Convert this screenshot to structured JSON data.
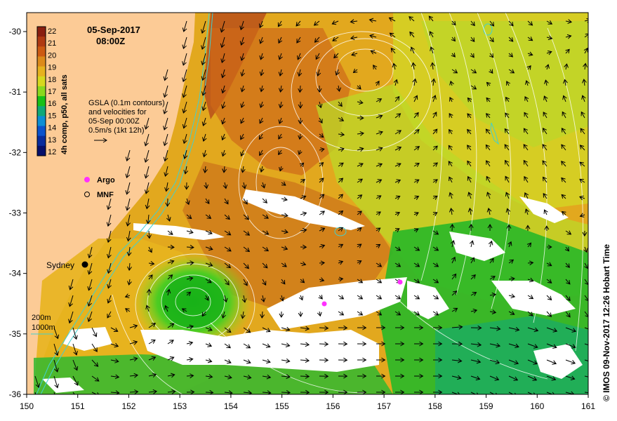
{
  "map": {
    "date": "05-Sep-2017",
    "time": "08:00Z",
    "colorbar": {
      "title": "4h comp, p50, all sats",
      "ticks": [
        "22",
        "21",
        "20",
        "19",
        "18",
        "17",
        "16",
        "15",
        "14",
        "13",
        "12"
      ],
      "colors": [
        "#8a1f10",
        "#b03a12",
        "#cd5a12",
        "#dc8a1a",
        "#e6b21e",
        "#d6d81e",
        "#8ad81e",
        "#18c018",
        "#10a878",
        "#0c8ed4",
        "#0a52cc",
        "#082c9c",
        "#06106a"
      ]
    },
    "gsla_note": [
      "GSLA (0.1m contours)",
      "and velocities for",
      "05-Sep 00:00Z",
      "0.5m/s (1kt 12h)"
    ],
    "legend": {
      "argo": "Argo",
      "mnf": "MNF"
    },
    "place": "Sydney",
    "isobaths": [
      "200m",
      "1000m"
    ],
    "x_ticks": [
      "150",
      "151",
      "152",
      "153",
      "154",
      "155",
      "156",
      "157",
      "158",
      "159",
      "160",
      "161"
    ],
    "y_ticks": [
      "-30",
      "-31",
      "-32",
      "-33",
      "-34",
      "-35",
      "-36"
    ],
    "credit": "© IMOS 09-Nov-2017 12:26 Hobart Time",
    "colors": {
      "land": "#fccb96",
      "cloud": "#ffffff",
      "isobath": "#40d0d0",
      "argo": "#ff30ff"
    }
  }
}
